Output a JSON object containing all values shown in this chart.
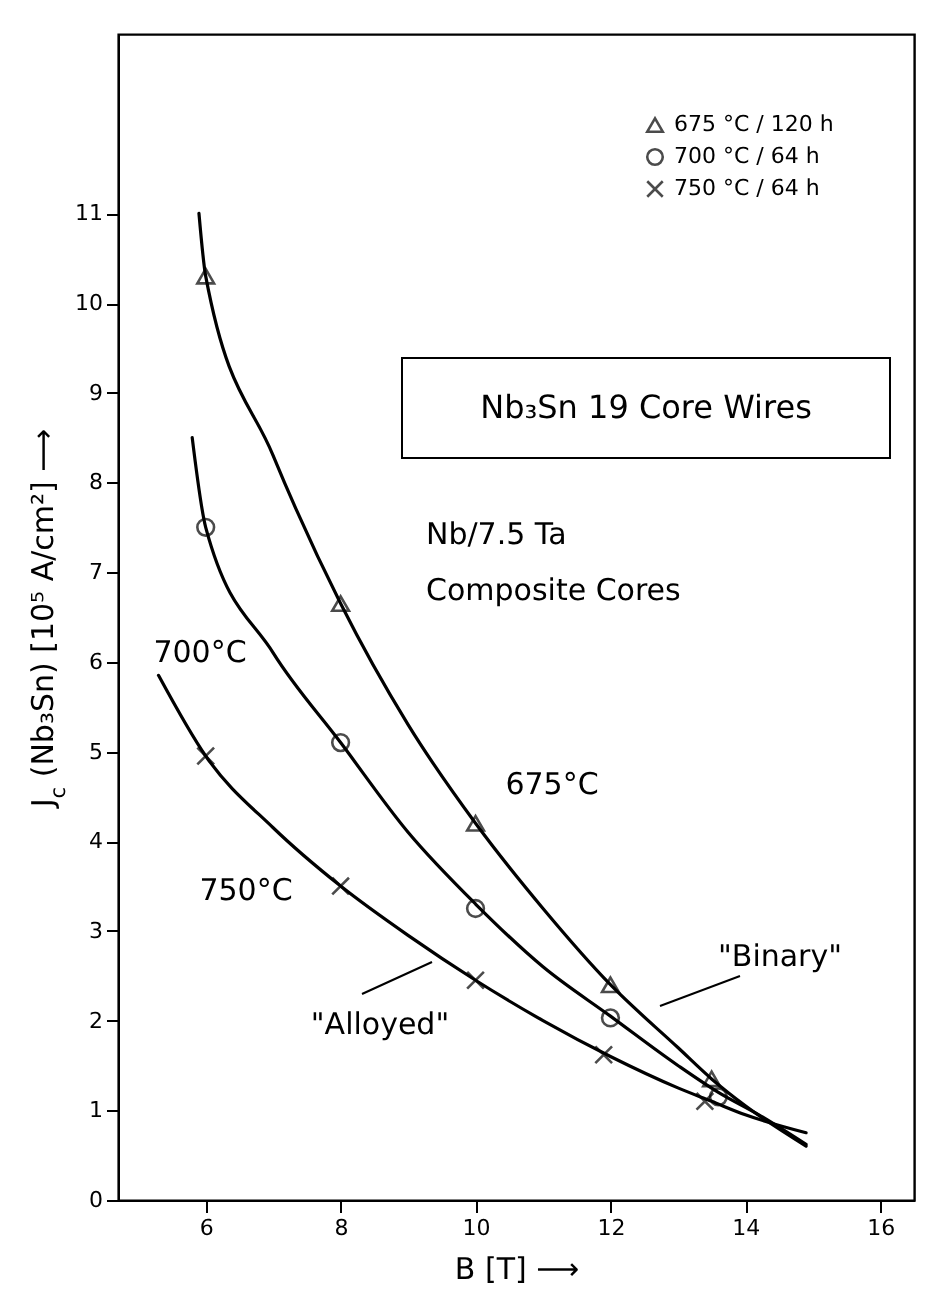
{
  "chart_data": {
    "type": "scatter",
    "xlabel": "B [T] ⟶",
    "ylabel": "J$_{c}$ (Nb₃Sn) [10⁵ A/cm²] ⟶",
    "xlim": [
      4.7,
      16.5
    ],
    "ylim": [
      0,
      13
    ],
    "xticks": [
      6,
      8,
      10,
      12,
      14,
      16
    ],
    "yticks": [
      0,
      1,
      2,
      3,
      4,
      5,
      6,
      7,
      8,
      9,
      10,
      11
    ],
    "grid": false,
    "legend": "top right",
    "series": [
      {
        "name": "675 °C / 120 h",
        "color": "#000000",
        "marker": "triangle",
        "x": [
          6,
          8,
          10,
          12,
          13.5
        ],
        "values": [
          10.3,
          6.65,
          4.2,
          2.4,
          1.35
        ]
      },
      {
        "name": "700 °C / 64 h",
        "color": "#000000",
        "marker": "circle",
        "x": [
          6,
          8,
          10,
          12,
          13.6
        ],
        "values": [
          7.5,
          5.1,
          3.25,
          2.03,
          1.15
        ]
      },
      {
        "name": "750 °C / 64 h",
        "color": "#000000",
        "marker": "cross",
        "x": [
          6,
          8,
          10,
          11.9,
          13.4
        ],
        "values": [
          4.95,
          3.5,
          2.45,
          1.62,
          1.1
        ]
      },
      {
        "type": "line",
        "color": "#000000",
        "line_style": "solid",
        "x": [
          5.9,
          6,
          7,
          8,
          9,
          10,
          11,
          12,
          13,
          13.5,
          14,
          14.9
        ],
        "values": [
          11,
          10.3,
          8.3,
          6.65,
          5.3,
          4.2,
          3.25,
          2.4,
          1.7,
          1.35,
          1.05,
          0.6
        ]
      },
      {
        "type": "line",
        "color": "#000000",
        "line_style": "solid",
        "x": [
          5.8,
          6,
          7,
          8,
          9,
          10,
          11,
          12,
          13,
          13.6,
          14.2,
          14.9
        ],
        "values": [
          8.5,
          7.5,
          6.1,
          5.1,
          4.1,
          3.3,
          2.6,
          2.05,
          1.5,
          1.2,
          0.95,
          0.62
        ]
      },
      {
        "type": "line",
        "color": "#000000",
        "line_style": "solid",
        "x": [
          5.3,
          6,
          7,
          8,
          9,
          10,
          11,
          12,
          13,
          13.5,
          14,
          14.9
        ],
        "values": [
          5.85,
          4.95,
          4.15,
          3.5,
          2.95,
          2.45,
          2.0,
          1.6,
          1.25,
          1.1,
          0.95,
          0.75
        ]
      }
    ],
    "annotations": [
      "Nb₃Sn  19 Core Wires",
      "Nb/7.5 Ta",
      "Composite Cores",
      "700°C",
      "750°C",
      "675°C",
      "\"Binary\"",
      "\"Alloyed\""
    ]
  }
}
